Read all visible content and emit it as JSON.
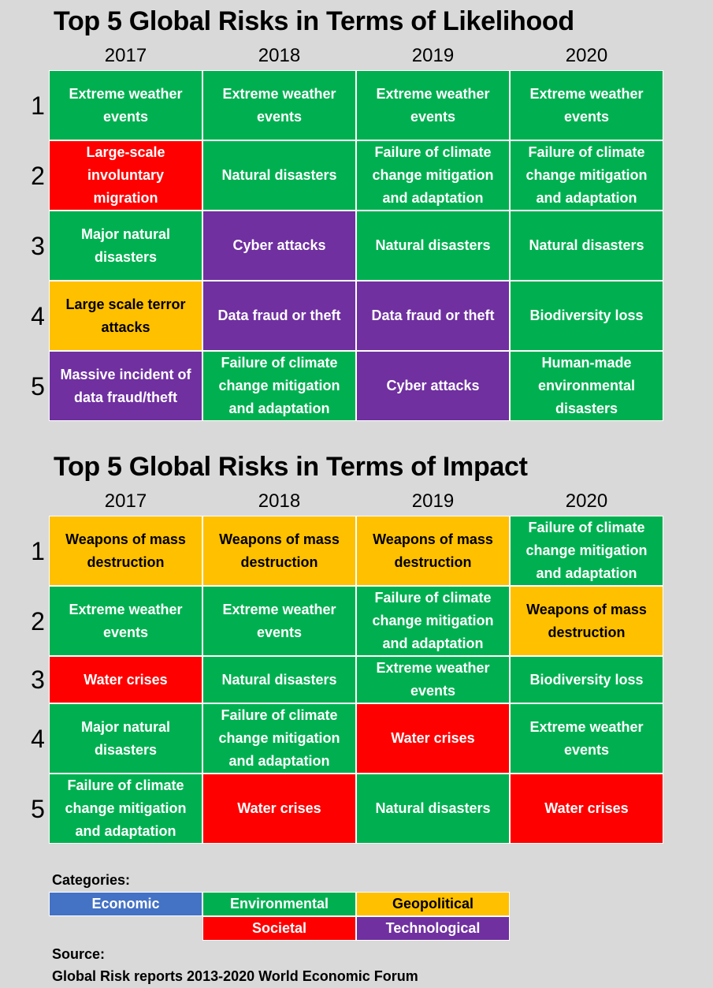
{
  "categories_colors": {
    "Economic": "#4472c4",
    "Environmental": "#00b050",
    "Geopolitical": "#ffc000",
    "Societal": "#ff0000",
    "Technological": "#7030a0"
  },
  "chart_data": [
    {
      "type": "table",
      "title": "Top 5 Global Risks in Terms of Likelihood",
      "years": [
        "2017",
        "2018",
        "2019",
        "2020"
      ],
      "ranks": [
        "1",
        "2",
        "3",
        "4",
        "5"
      ],
      "rows": [
        [
          {
            "text": "Extreme weather\nevents",
            "category": "Environmental"
          },
          {
            "text": "Extreme weather\nevents",
            "category": "Environmental"
          },
          {
            "text": "Extreme weather\nevents",
            "category": "Environmental"
          },
          {
            "text": "Extreme weather\nevents",
            "category": "Environmental"
          }
        ],
        [
          {
            "text": "Large-scale\ninvoluntary\nmigration",
            "category": "Societal"
          },
          {
            "text": "Natural disasters",
            "category": "Environmental"
          },
          {
            "text": "Failure of climate\nchange mitigation\nand adaptation",
            "category": "Environmental"
          },
          {
            "text": "Failure of climate\nchange mitigation\nand adaptation",
            "category": "Environmental"
          }
        ],
        [
          {
            "text": "Major natural\ndisasters",
            "category": "Environmental"
          },
          {
            "text": "Cyber attacks",
            "category": "Technological"
          },
          {
            "text": "Natural disasters",
            "category": "Environmental"
          },
          {
            "text": "Natural disasters",
            "category": "Environmental"
          }
        ],
        [
          {
            "text": "Large scale terror\nattacks",
            "category": "Geopolitical"
          },
          {
            "text": "Data  fraud or theft",
            "category": "Technological"
          },
          {
            "text": "Data  fraud or theft",
            "category": "Technological"
          },
          {
            "text": "Biodiversity  loss",
            "category": "Environmental"
          }
        ],
        [
          {
            "text": "Massive incident of\ndata fraud/theft",
            "category": "Technological"
          },
          {
            "text": "Failure of climate\nchange mitigation\nand adaptation",
            "category": "Environmental"
          },
          {
            "text": "Cyber attacks",
            "category": "Technological"
          },
          {
            "text": "Human-made\nenvironmental\ndisasters",
            "category": "Environmental"
          }
        ]
      ]
    },
    {
      "type": "table",
      "title": "Top 5 Global Risks in Terms of Impact",
      "years": [
        "2017",
        "2018",
        "2019",
        "2020"
      ],
      "ranks": [
        "1",
        "2",
        "3",
        "4",
        "5"
      ],
      "rows": [
        [
          {
            "text": "Weapons of mass\ndestruction",
            "category": "Geopolitical"
          },
          {
            "text": "Weapons of mass\ndestruction",
            "category": "Geopolitical"
          },
          {
            "text": "Weapons of mass\ndestruction",
            "category": "Geopolitical"
          },
          {
            "text": "Failure of climate\nchange mitigation\nand adaptation",
            "category": "Environmental"
          }
        ],
        [
          {
            "text": "Extreme weather\nevents",
            "category": "Environmental"
          },
          {
            "text": "Extreme weather\nevents",
            "category": "Environmental"
          },
          {
            "text": "Failure of climate\nchange mitigation\nand adaptation",
            "category": "Environmental"
          },
          {
            "text": "Weapons of mass\ndestruction",
            "category": "Geopolitical"
          }
        ],
        [
          {
            "text": "Water crises",
            "category": "Societal"
          },
          {
            "text": "Natural disasters",
            "category": "Environmental"
          },
          {
            "text": "Extreme weather\nevents",
            "category": "Environmental"
          },
          {
            "text": "Biodiversity  loss",
            "category": "Environmental"
          }
        ],
        [
          {
            "text": "Major natural\ndisasters",
            "category": "Environmental"
          },
          {
            "text": "Failure of climate\nchange mitigation\nand adaptation",
            "category": "Environmental"
          },
          {
            "text": "Water crises",
            "category": "Societal"
          },
          {
            "text": "Extreme weather\nevents",
            "category": "Environmental"
          }
        ],
        [
          {
            "text": "Failure of climate\nchange mitigation\nand adaptation",
            "category": "Environmental"
          },
          {
            "text": "Water crises",
            "category": "Societal"
          },
          {
            "text": "Natural disasters",
            "category": "Environmental"
          },
          {
            "text": "Water crises",
            "category": "Societal"
          }
        ]
      ]
    }
  ],
  "legend": {
    "title": "Categories:",
    "items": [
      "Economic",
      "Environmental",
      "Geopolitical",
      "Societal",
      "Technological"
    ]
  },
  "source": {
    "label": "Source:",
    "text": "Global Risk reports 2013-2020 World Economic Forum"
  }
}
